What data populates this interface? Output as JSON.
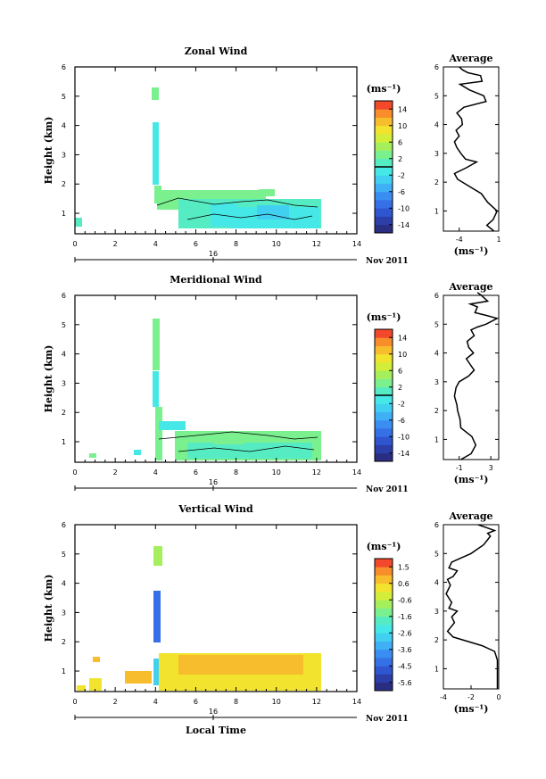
{
  "chart_data": [
    {
      "type": "heatmap",
      "title": "Zonal Wind",
      "ylabel": "Height (km)",
      "xlim": [
        0,
        14
      ],
      "ylim": [
        0.3,
        6
      ],
      "x_ticks": [
        "0",
        "2",
        "4",
        "6",
        "8",
        "10",
        "12",
        "14"
      ],
      "y_ticks": [
        "1",
        "2",
        "3",
        "4",
        "5",
        "6"
      ],
      "date_tick": "16",
      "date_label": "Nov 2011",
      "colorbar": {
        "unit": "(ms⁻¹)",
        "min": -16,
        "max": 16,
        "ticks": [
          "14",
          "10",
          "6",
          "2",
          "-2",
          "-6",
          "-10",
          "-14"
        ],
        "contour_level": 0
      },
      "profile": {
        "title": "Average",
        "xlabel": "(ms⁻¹)",
        "xlim": [
          -6,
          1
        ],
        "x_ticks": [
          "-4",
          "1"
        ],
        "x": [
          0.4,
          -0.5,
          0.3,
          0.8,
          -0.4,
          -1.2,
          -3.0,
          -4.2,
          -4.6,
          -3.1,
          -1.8,
          -3.2,
          -3.8,
          -4.3,
          -4.6,
          -4.0,
          -4.4,
          -3.6,
          -3.7,
          -4.3,
          -3.4,
          -0.6,
          -0.9,
          -2.7,
          -3.9,
          -1.1,
          -1.3,
          -2.9,
          -3.6,
          -4.0
        ],
        "y": [
          0.3,
          0.5,
          0.7,
          1.0,
          1.3,
          1.6,
          1.9,
          2.1,
          2.3,
          2.5,
          2.7,
          2.8,
          3.0,
          3.2,
          3.4,
          3.6,
          3.8,
          4.0,
          4.2,
          4.4,
          4.6,
          4.8,
          5.0,
          5.2,
          5.4,
          5.5,
          5.7,
          5.8,
          5.9,
          6.0
        ]
      }
    },
    {
      "type": "heatmap",
      "title": "Meridional Wind",
      "ylabel": "Height (km)",
      "xlim": [
        0,
        14
      ],
      "ylim": [
        0.3,
        6
      ],
      "x_ticks": [
        "0",
        "2",
        "4",
        "6",
        "8",
        "10",
        "12",
        "14"
      ],
      "y_ticks": [
        "1",
        "2",
        "3",
        "4",
        "5",
        "6"
      ],
      "date_tick": "16",
      "date_label": "Nov 2011",
      "colorbar": {
        "unit": "(ms⁻¹)",
        "min": -16,
        "max": 16,
        "ticks": [
          "14",
          "10",
          "6",
          "2",
          "-2",
          "-6",
          "-10",
          "-14"
        ],
        "contour_level": 0
      },
      "profile": {
        "title": "Average",
        "xlabel": "(ms⁻¹)",
        "xlim": [
          -3,
          4
        ],
        "x_ticks": [
          "-1",
          "3"
        ],
        "x": [
          -0.8,
          0.5,
          1.1,
          0.6,
          -0.8,
          -0.9,
          -1.2,
          -1.3,
          -1.6,
          -1.4,
          -1.0,
          0.2,
          0.9,
          0.4,
          -0.1,
          0.8,
          0.2,
          0.0,
          0.9,
          0.5,
          1.3,
          2.4,
          3.8,
          2.5,
          1.0,
          1.3,
          0.4,
          2.6,
          1.8,
          1.3
        ],
        "y": [
          0.3,
          0.5,
          0.8,
          1.1,
          1.4,
          1.7,
          2.0,
          2.2,
          2.5,
          2.8,
          3.0,
          3.2,
          3.4,
          3.6,
          3.8,
          4.0,
          4.2,
          4.4,
          4.6,
          4.8,
          4.9,
          5.0,
          5.2,
          5.3,
          5.4,
          5.6,
          5.7,
          5.8,
          6.0,
          6.1
        ]
      }
    },
    {
      "type": "heatmap",
      "title": "Vertical Wind",
      "xlabel": "Local Time",
      "ylabel": "Height (km)",
      "xlim": [
        0,
        14
      ],
      "ylim": [
        0.3,
        6
      ],
      "x_ticks": [
        "0",
        "2",
        "4",
        "6",
        "8",
        "10",
        "12",
        "14"
      ],
      "y_ticks": [
        "1",
        "2",
        "3",
        "4",
        "5",
        "6"
      ],
      "date_tick": "16",
      "date_label": "Nov 2011",
      "colorbar": {
        "unit": "(ms⁻¹)",
        "min": -6,
        "max": 2,
        "ticks": [
          "1.5",
          "0.6",
          "-0.6",
          "-1.6",
          "-2.6",
          "-3.6",
          "-4.5",
          "-5.6"
        ]
      },
      "profile": {
        "title": "Average",
        "xlabel": "(ms⁻¹)",
        "xlim": [
          -4,
          0
        ],
        "x_ticks": [
          "-4",
          "-2",
          "0"
        ],
        "x": [
          -0.1,
          -0.1,
          -0.1,
          -0.3,
          -1.2,
          -2.6,
          -3.3,
          -3.7,
          -3.2,
          -3.4,
          -3.0,
          -3.6,
          -3.4,
          -3.8,
          -3.5,
          -3.7,
          -3.3,
          -3.0,
          -3.6,
          -3.4,
          -2.0,
          -1.1,
          -0.6,
          -0.8,
          -0.3,
          -0.9,
          -1.5
        ],
        "y": [
          0.3,
          0.8,
          1.3,
          1.6,
          1.8,
          2.0,
          2.1,
          2.3,
          2.6,
          2.8,
          3.0,
          3.1,
          3.3,
          3.6,
          3.9,
          4.1,
          4.2,
          4.4,
          4.5,
          4.7,
          5.0,
          5.3,
          5.6,
          5.7,
          5.8,
          5.9,
          6.0
        ]
      }
    }
  ]
}
